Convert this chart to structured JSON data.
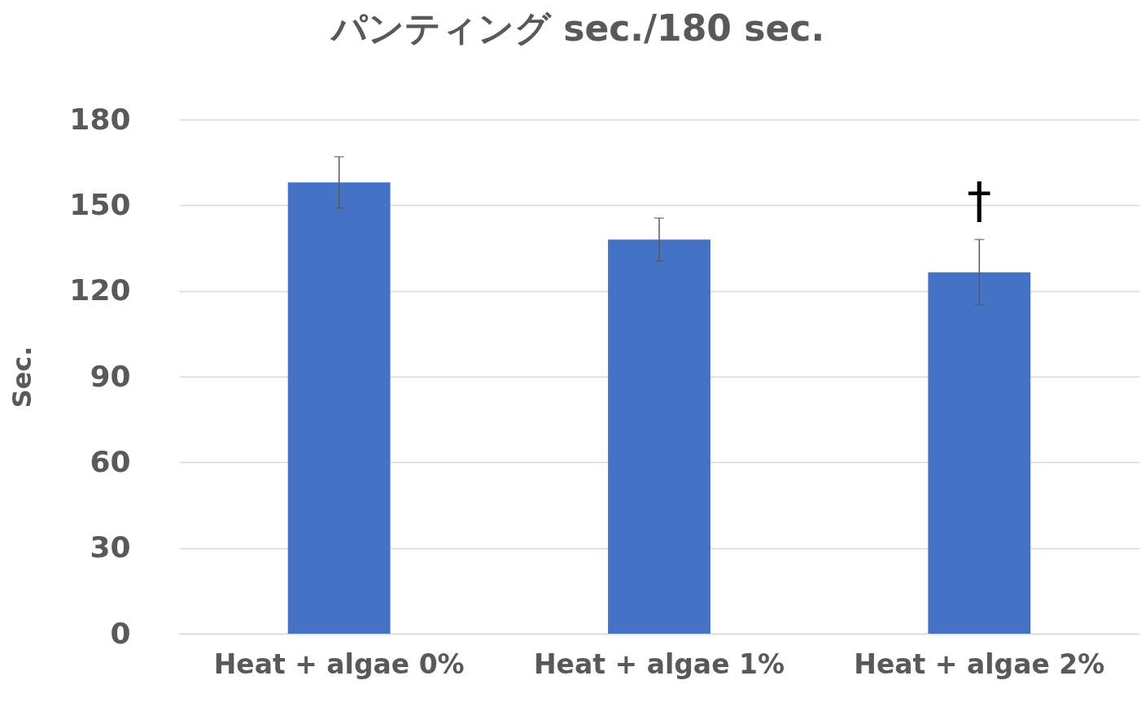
{
  "chart_data": {
    "type": "bar",
    "title": "パンティング sec./180 sec.",
    "ylabel": "Sec.",
    "categories": [
      "Heat + algae 0%",
      "Heat + algae 1%",
      "Heat + algae 2%"
    ],
    "values": [
      158,
      138,
      126.5
    ],
    "errors": [
      9,
      7.5,
      11.5
    ],
    "color": "#4472c4",
    "ylim": [
      0,
      180
    ],
    "yticks": [
      0,
      30,
      60,
      90,
      120,
      150,
      180
    ],
    "grid": "y",
    "annotations": [
      "†"
    ]
  }
}
